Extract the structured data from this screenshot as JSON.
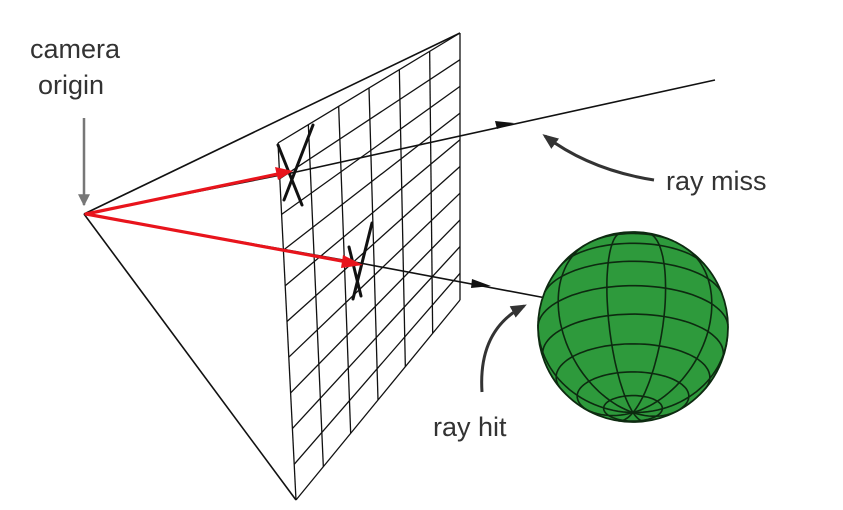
{
  "labels": {
    "camera_origin_line1": "camera",
    "camera_origin_line2": "origin",
    "ray_miss": "ray miss",
    "ray_hit": "ray hit"
  },
  "colors": {
    "primary_ray": "#e8141c",
    "line": "#111111",
    "sphere_fill": "#2e9a3c",
    "sphere_stroke": "#0d2a10",
    "pointer_arrow": "#333333",
    "origin_arrow": "#777777"
  },
  "image_plane": {
    "columns": 6,
    "rows": 10
  },
  "sphere": {
    "latitude_bands": 10,
    "longitude_lines": 5
  }
}
